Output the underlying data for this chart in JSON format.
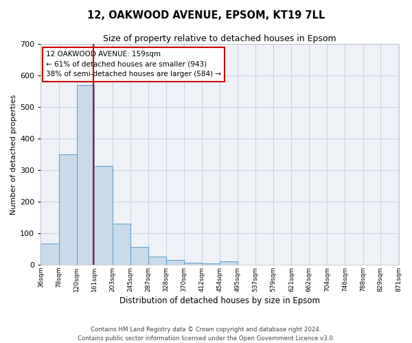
{
  "title": "12, OAKWOOD AVENUE, EPSOM, KT19 7LL",
  "subtitle": "Size of property relative to detached houses in Epsom",
  "xlabel": "Distribution of detached houses by size in Epsom",
  "ylabel": "Number of detached properties",
  "footer_line1": "Contains HM Land Registry data © Crown copyright and database right 2024.",
  "footer_line2": "Contains public sector information licensed under the Open Government Licence v3.0.",
  "annotation_line1": "12 OAKWOOD AVENUE: 159sqm",
  "annotation_line2": "← 61% of detached houses are smaller (943)",
  "annotation_line3": "38% of semi-detached houses are larger (584) →",
  "property_size": 159,
  "bin_edges": [
    36,
    78,
    120,
    161,
    203,
    245,
    287,
    328,
    370,
    412,
    454,
    495,
    537,
    579,
    621,
    662,
    704,
    746,
    788,
    829,
    871
  ],
  "bin_labels": [
    "36sqm",
    "78sqm",
    "120sqm",
    "161sqm",
    "203sqm",
    "245sqm",
    "287sqm",
    "328sqm",
    "370sqm",
    "412sqm",
    "454sqm",
    "495sqm",
    "537sqm",
    "579sqm",
    "621sqm",
    "662sqm",
    "704sqm",
    "746sqm",
    "788sqm",
    "829sqm",
    "871sqm"
  ],
  "bar_values": [
    68,
    350,
    570,
    313,
    130,
    57,
    25,
    14,
    7,
    5,
    10,
    0,
    0,
    0,
    0,
    0,
    0,
    0,
    0,
    0
  ],
  "bar_color": "#c9daea",
  "bar_edge_color": "#5a9dc8",
  "grid_color": "#c5d5e5",
  "bg_color": "#eef2f7",
  "vline_color": "#cc0000",
  "annotation_box_color": "#cc0000",
  "ylim": [
    0,
    700
  ],
  "yticks": [
    0,
    100,
    200,
    300,
    400,
    500,
    600,
    700
  ]
}
